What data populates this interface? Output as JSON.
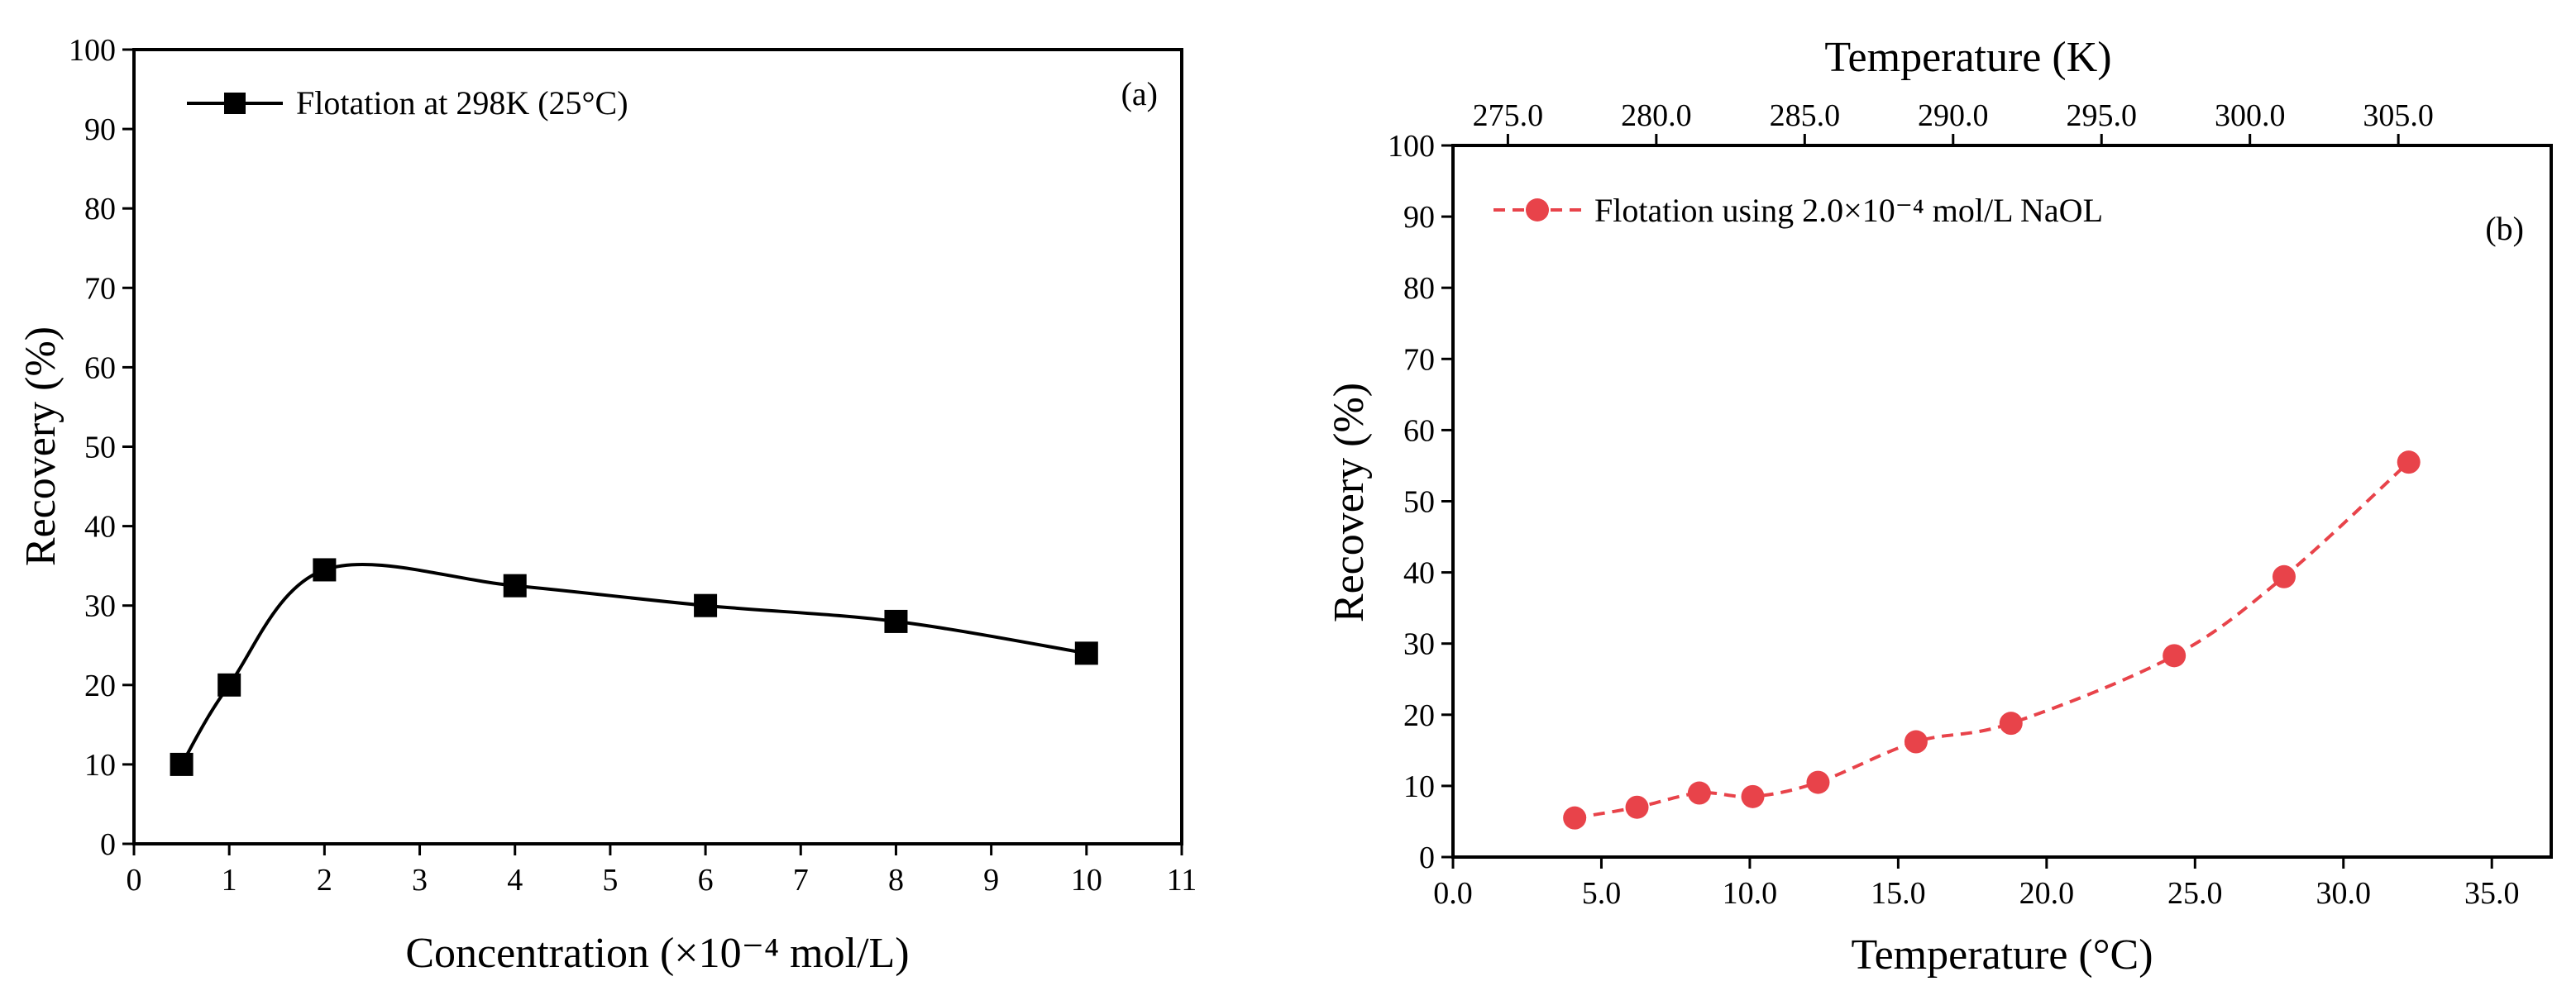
{
  "chart_data": [
    {
      "type": "scatter",
      "panel_label": "(a)",
      "xlabel": "Concentration (×10⁻⁴ mol/L)",
      "ylabel": "Recovery (%)",
      "xlim": [
        0,
        11
      ],
      "ylim": [
        0,
        100
      ],
      "x_ticks": [
        0,
        1,
        2,
        3,
        4,
        5,
        6,
        7,
        8,
        9,
        10,
        11
      ],
      "y_ticks": [
        0,
        10,
        20,
        30,
        40,
        50,
        60,
        70,
        80,
        90,
        100
      ],
      "legend_position": "top-left",
      "series": [
        {
          "name": "Flotation at 298K (25°C)",
          "marker": "square",
          "line": "solid smooth",
          "color": "#000000",
          "x": [
            0.5,
            1,
            2,
            4,
            6,
            8,
            10
          ],
          "y": [
            10,
            20,
            34.5,
            32.5,
            30,
            28,
            24
          ]
        }
      ]
    },
    {
      "type": "scatter",
      "panel_label": "(b)",
      "xlabel": "Temperature (°C)",
      "x2label": "Temperature (K)",
      "ylabel": "Recovery (%)",
      "xlim": [
        0,
        37
      ],
      "x2lim": [
        273.15,
        310.15
      ],
      "ylim": [
        0,
        100
      ],
      "x_ticks": [
        0.0,
        5.0,
        10.0,
        15.0,
        20.0,
        25.0,
        30.0,
        35.0
      ],
      "x2_ticks": [
        275.0,
        280.0,
        285.0,
        290.0,
        295.0,
        300.0,
        305.0
      ],
      "y_ticks": [
        0,
        10,
        20,
        30,
        40,
        50,
        60,
        70,
        80,
        90,
        100
      ],
      "legend_position": "top-left",
      "series": [
        {
          "name": "Flotation using 2.0×10⁻⁴ mol/L  NaOL",
          "marker": "circle",
          "line": "dashed",
          "color": "#e8434a",
          "x": [
            4.1,
            6.2,
            8.3,
            10.1,
            12.3,
            15.6,
            18.8,
            24.3,
            28.0,
            32.2
          ],
          "y": [
            5.5,
            7,
            9,
            8.5,
            10.5,
            16.2,
            18.8,
            28.3,
            39.4,
            55.5
          ]
        }
      ]
    }
  ]
}
